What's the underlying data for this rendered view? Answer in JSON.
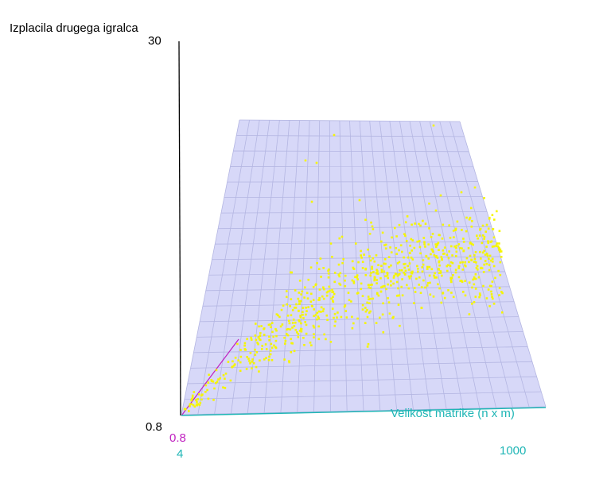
{
  "chart_data": {
    "type": "scatter",
    "title": "",
    "zlabel": "Izplacila drugega igralca",
    "xlabel": "Velikost matrike (n x m)",
    "xlim": [
      4,
      1000
    ],
    "zlim": [
      0.8,
      30
    ],
    "ylim_min": 0.8,
    "tick_labels": {
      "z_max": "30",
      "z_min": "0.8",
      "y_min": "0.8",
      "x_min": "4",
      "x_max": "1000"
    },
    "grid": true,
    "colors": {
      "points": "#f5f500",
      "plane": "#d7d8f8",
      "grid": "#b4b6e2",
      "z_axis": "#000000",
      "x_axis": "#20b6b6",
      "y_axis": "#c020c0",
      "x_text": "#20b6b6",
      "y_text": "#c020c0"
    },
    "trend": "payoff rises with matrix size; roughly linear with wide spread, few outliers up to ~30"
  }
}
